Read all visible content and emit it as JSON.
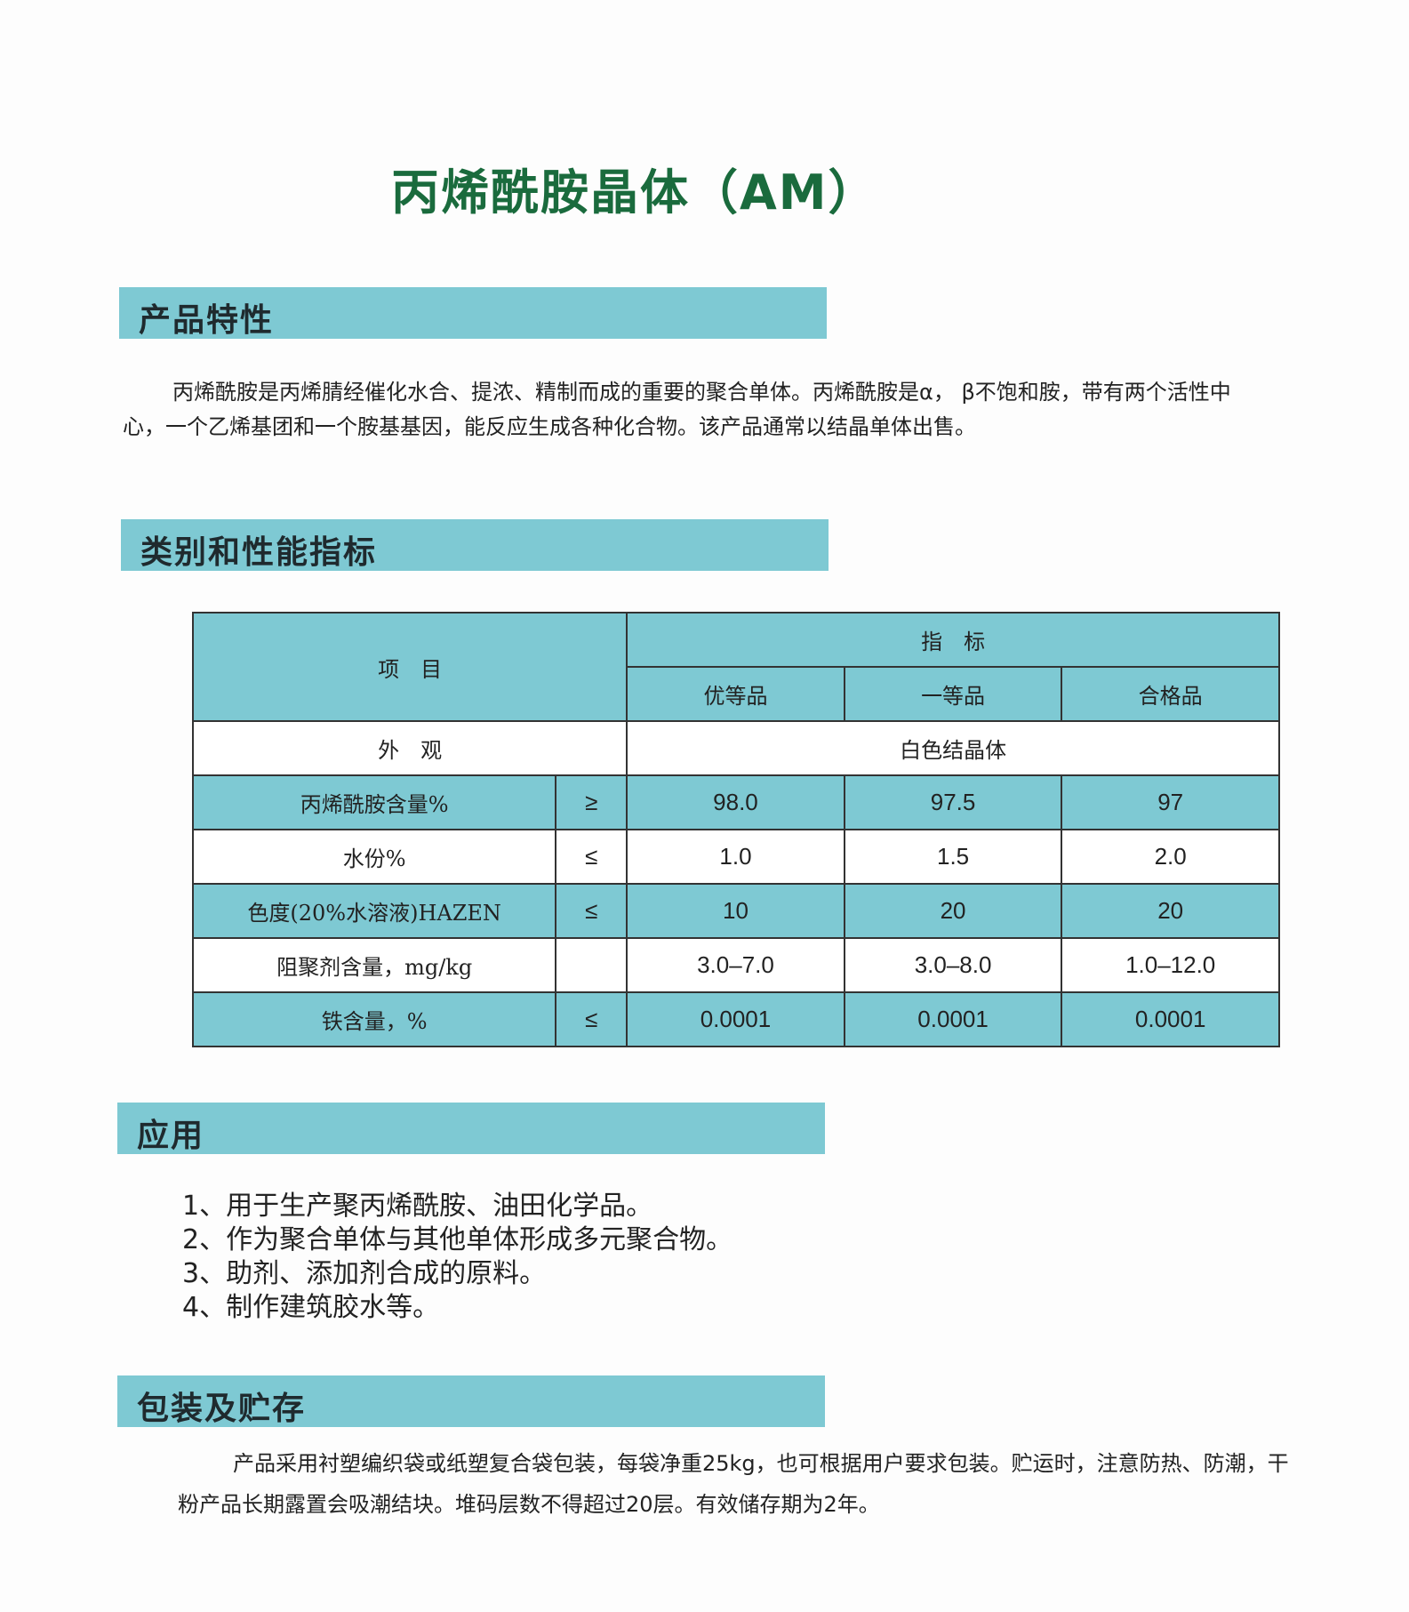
{
  "title": "丙烯酰胺晶体（AM）",
  "sections": {
    "features": {
      "heading": "产品特性",
      "text": "丙烯酰胺是丙烯腈经催化水合、提浓、精制而成的重要的聚合单体。丙烯酰胺是α， β不饱和胺，带有两个活性中心，一个乙烯基团和一个胺基基因，能反应生成各种化合物。该产品通常以结晶单体出售。"
    },
    "specs": {
      "heading": "类别和性能指标",
      "table": {
        "item_header": "项　目",
        "index_header": "指　标",
        "grades": [
          "优等品",
          "一等品",
          "合格品"
        ],
        "appearance": {
          "label": "外　观",
          "value": "白色结晶体"
        },
        "rows": [
          {
            "label": "丙烯酰胺含量%",
            "op": "≥",
            "values": [
              "98.0",
              "97.5",
              "97"
            ]
          },
          {
            "label": "水份%",
            "op": "≤",
            "values": [
              "1.0",
              "1.5",
              "2.0"
            ]
          },
          {
            "label": "色度(20%水溶液)HAZEN",
            "op": "≤",
            "values": [
              "10",
              "20",
              "20"
            ]
          },
          {
            "label": "阻聚剂含量，mg/kg",
            "op": "",
            "values": [
              "3.0–7.0",
              "3.0–8.0",
              "1.0–12.0"
            ]
          },
          {
            "label": "铁含量，%",
            "op": "≤",
            "values": [
              "0.0001",
              "0.0001",
              "0.0001"
            ]
          }
        ]
      }
    },
    "applications": {
      "heading": "应用",
      "items": [
        "1、用于生产聚丙烯酰胺、油田化学品。",
        "2、作为聚合单体与其他单体形成多元聚合物。",
        "3、助剂、添加剂合成的原料。",
        "4、制作建筑胶水等。"
      ]
    },
    "packaging": {
      "heading": "包装及贮存",
      "text": "产品采用衬塑编织袋或纸塑复合袋包装，每袋净重25kg，也可根据用户要求包装。贮运时，注意防热、防潮，干粉产品长期露置会吸潮结块。堆码层数不得超过20层。有效储存期为2年。"
    }
  },
  "colors": {
    "title": "#1a6b3d",
    "band": "#7ec9d3"
  }
}
